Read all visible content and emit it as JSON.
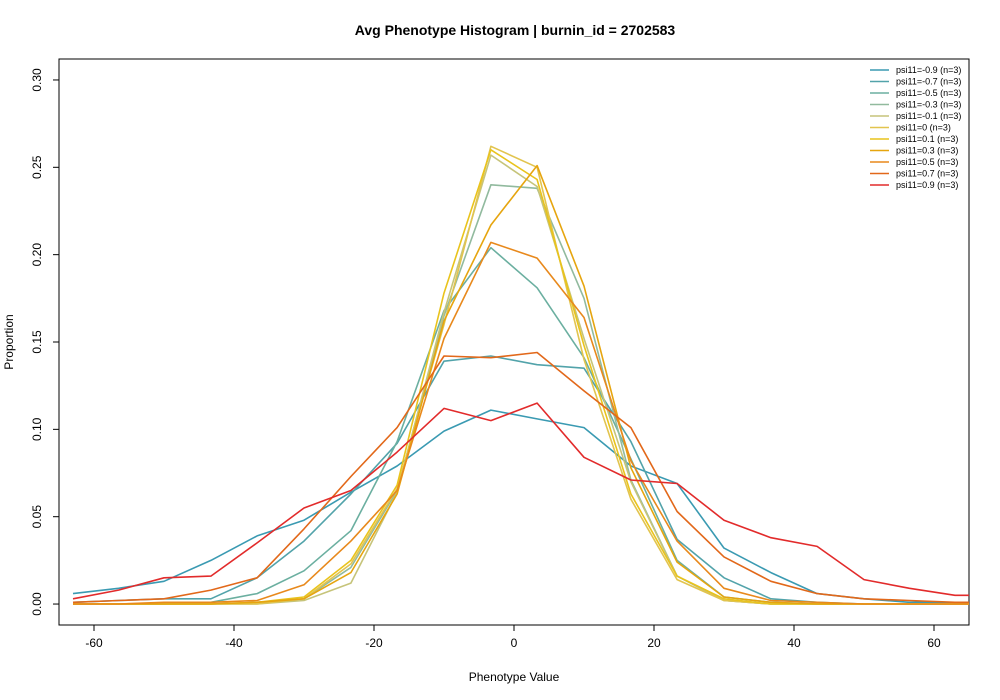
{
  "chart_data": {
    "type": "line",
    "title": "Avg Phenotype Histogram | burnin_id = 2702583",
    "xlabel": "Phenotype Value",
    "ylabel": "Proportion",
    "xlim": [
      -65,
      65
    ],
    "ylim": [
      -0.012,
      0.312
    ],
    "xticks": [
      -60,
      -40,
      -20,
      0,
      20,
      40,
      60
    ],
    "yticks": [
      0.0,
      0.05,
      0.1,
      0.15,
      0.2,
      0.25,
      0.3
    ],
    "ytick_labels": [
      "0.00",
      "0.05",
      "0.10",
      "0.15",
      "0.20",
      "0.25",
      "0.30"
    ],
    "grid": false,
    "legend_position": "top-right",
    "x": [
      -63,
      -56.5,
      -50,
      -43.3,
      -36.7,
      -30,
      -23.3,
      -16.7,
      -10,
      -3.3,
      3.3,
      10,
      16.7,
      23.3,
      30,
      36.7,
      43.3,
      50,
      56.5,
      63,
      65
    ],
    "series": [
      {
        "name": "psi11=-0.9 (n=3)",
        "color": "#3A9AB2",
        "values": [
          0.006,
          0.009,
          0.013,
          0.025,
          0.039,
          0.048,
          0.064,
          0.079,
          0.099,
          0.111,
          0.106,
          0.101,
          0.079,
          0.069,
          0.032,
          0.018,
          0.006,
          0.003,
          0.001,
          0.001,
          0.001
        ]
      },
      {
        "name": "psi11=-0.7 (n=3)",
        "color": "#52A3AA",
        "values": [
          0.001,
          0.002,
          0.003,
          0.003,
          0.015,
          0.036,
          0.063,
          0.092,
          0.139,
          0.142,
          0.137,
          0.135,
          0.093,
          0.037,
          0.015,
          0.003,
          0.001,
          0.0,
          0.0,
          0.0,
          0.0
        ]
      },
      {
        "name": "psi11=-0.5 (n=3)",
        "color": "#6BAFA0",
        "values": [
          0.0,
          0.0,
          0.0,
          0.001,
          0.006,
          0.019,
          0.042,
          0.093,
          0.168,
          0.204,
          0.181,
          0.141,
          0.083,
          0.025,
          0.004,
          0.001,
          0.0,
          0.0,
          0.0,
          0.0,
          0.0
        ]
      },
      {
        "name": "psi11=-0.3 (n=3)",
        "color": "#91BA9E",
        "values": [
          0.0,
          0.0,
          0.0,
          0.0,
          0.001,
          0.003,
          0.021,
          0.065,
          0.165,
          0.24,
          0.238,
          0.175,
          0.071,
          0.016,
          0.002,
          0.0,
          0.0,
          0.0,
          0.0,
          0.0,
          0.0
        ]
      },
      {
        "name": "psi11=-0.1 (n=3)",
        "color": "#C6C47A",
        "values": [
          0.0,
          0.0,
          0.0,
          0.0,
          0.0,
          0.002,
          0.012,
          0.064,
          0.167,
          0.257,
          0.239,
          0.152,
          0.07,
          0.016,
          0.002,
          0.0,
          0.0,
          0.0,
          0.0,
          0.0,
          0.0
        ]
      },
      {
        "name": "psi11=0 (n=3)",
        "color": "#E2C44E",
        "values": [
          0.0,
          0.0,
          0.0,
          0.0,
          0.0,
          0.003,
          0.023,
          0.066,
          0.16,
          0.262,
          0.25,
          0.14,
          0.06,
          0.014,
          0.002,
          0.0,
          0.0,
          0.0,
          0.0,
          0.0,
          0.0
        ]
      },
      {
        "name": "psi11=0.1 (n=3)",
        "color": "#E9C31C",
        "values": [
          0.0,
          0.0,
          0.0,
          0.0,
          0.001,
          0.004,
          0.025,
          0.068,
          0.178,
          0.26,
          0.243,
          0.148,
          0.063,
          0.016,
          0.003,
          0.0,
          0.0,
          0.0,
          0.0,
          0.0,
          0.0
        ]
      },
      {
        "name": "psi11=0.3 (n=3)",
        "color": "#E6A50F",
        "values": [
          0.0,
          0.0,
          0.0,
          0.0,
          0.001,
          0.003,
          0.018,
          0.063,
          0.162,
          0.217,
          0.251,
          0.182,
          0.078,
          0.024,
          0.004,
          0.001,
          0.0,
          0.0,
          0.0,
          0.0,
          0.0
        ]
      },
      {
        "name": "psi11=0.5 (n=3)",
        "color": "#E8891C",
        "values": [
          0.0,
          0.0,
          0.001,
          0.001,
          0.002,
          0.011,
          0.036,
          0.065,
          0.152,
          0.207,
          0.198,
          0.164,
          0.082,
          0.036,
          0.009,
          0.002,
          0.001,
          0.0,
          0.0,
          0.0,
          0.0
        ]
      },
      {
        "name": "psi11=0.7 (n=3)",
        "color": "#E2681A",
        "values": [
          0.001,
          0.002,
          0.003,
          0.008,
          0.015,
          0.043,
          0.073,
          0.101,
          0.142,
          0.141,
          0.144,
          0.122,
          0.101,
          0.053,
          0.027,
          0.013,
          0.006,
          0.003,
          0.002,
          0.001,
          0.001
        ]
      },
      {
        "name": "psi11=0.9 (n=3)",
        "color": "#E22B2B",
        "values": [
          0.003,
          0.008,
          0.015,
          0.016,
          0.035,
          0.055,
          0.065,
          0.087,
          0.112,
          0.105,
          0.115,
          0.084,
          0.071,
          0.069,
          0.048,
          0.038,
          0.033,
          0.014,
          0.009,
          0.005,
          0.005
        ]
      }
    ]
  }
}
